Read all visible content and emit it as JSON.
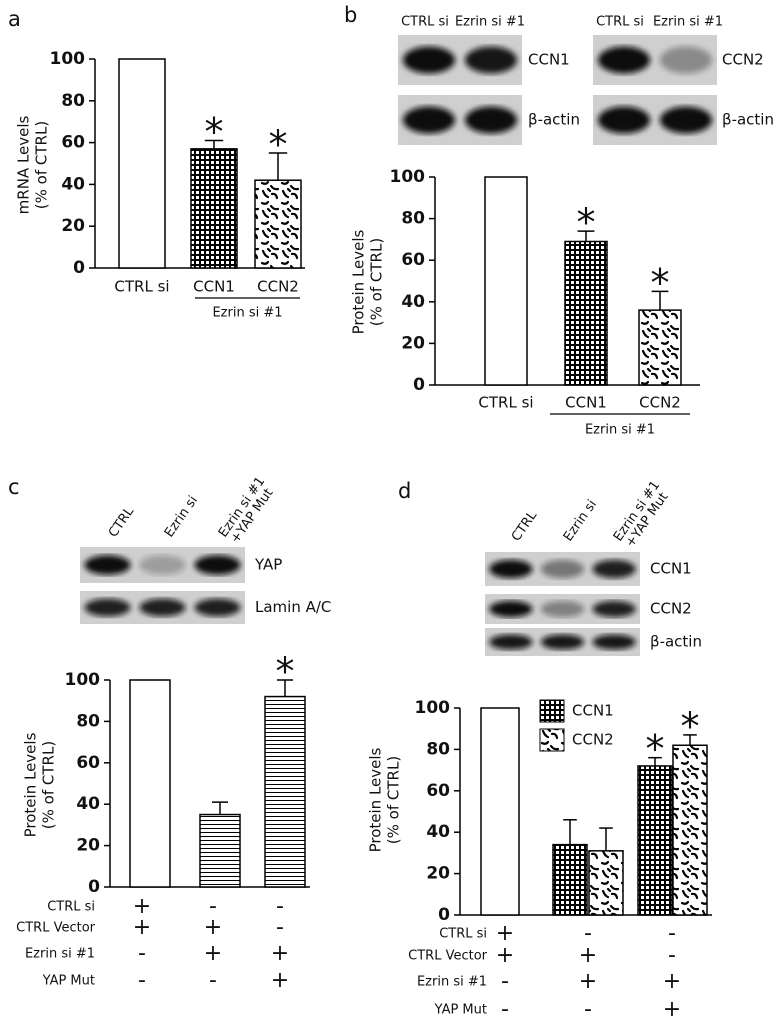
{
  "chart_data": [
    {
      "type": "bar",
      "panel": "a",
      "ylabel": [
        "mRNA Levels",
        "(% of CTRL)"
      ],
      "categories": [
        "CTRL si",
        "CCN1",
        "CCN2"
      ],
      "values": [
        100,
        57,
        42
      ],
      "errors": [
        null,
        4,
        13
      ],
      "significance": [
        null,
        "*",
        "*"
      ],
      "patterns": [
        "open",
        "checker",
        "speckle"
      ],
      "group": {
        "label": "Ezrin si #1",
        "from": 1,
        "to": 2
      },
      "ylim": [
        0,
        100
      ],
      "yticks": [
        0,
        20,
        40,
        60,
        80,
        100
      ]
    },
    {
      "type": "bar",
      "panel": "b",
      "ylabel": [
        "Protein Levels",
        "(% of CTRL)"
      ],
      "categories": [
        "CTRL si",
        "CCN1",
        "CCN2"
      ],
      "values": [
        100,
        69,
        36
      ],
      "errors": [
        null,
        5,
        9
      ],
      "significance": [
        null,
        "*",
        "*"
      ],
      "patterns": [
        "open",
        "checker",
        "speckle"
      ],
      "group": {
        "label": "Ezrin si #1",
        "from": 1,
        "to": 2
      },
      "ylim": [
        0,
        100
      ],
      "yticks": [
        0,
        20,
        40,
        60,
        80,
        100
      ],
      "blots": [
        {
          "lanes": [
            "CTRL si",
            "Ezrin si #1"
          ],
          "rows": [
            "CCN1",
            "β-actin"
          ]
        },
        {
          "lanes": [
            "CTRL si",
            "Ezrin si #1"
          ],
          "rows": [
            "CCN2",
            "β-actin"
          ]
        }
      ]
    },
    {
      "type": "bar",
      "panel": "c",
      "ylabel": [
        "Protein Levels",
        "(% of CTRL)"
      ],
      "values": [
        100,
        35,
        92
      ],
      "errors": [
        null,
        6,
        8
      ],
      "significance": [
        null,
        null,
        "*"
      ],
      "patterns": [
        "open",
        "hlines",
        "hlines"
      ],
      "ylim": [
        0,
        100
      ],
      "yticks": [
        0,
        20,
        40,
        60,
        80,
        100
      ],
      "conditions": [
        {
          "label": "CTRL si",
          "marks": [
            "+",
            "-",
            "-"
          ]
        },
        {
          "label": "CTRL Vector",
          "marks": [
            "+",
            "+",
            "-"
          ]
        },
        {
          "label": "Ezrin si #1",
          "marks": [
            "-",
            "+",
            "+"
          ]
        },
        {
          "label": "YAP Mut",
          "marks": [
            "-",
            "-",
            "+"
          ]
        }
      ],
      "blots": [
        {
          "lanes": [
            [
              "CTRL"
            ],
            [
              "Ezrin si"
            ],
            [
              "Ezrin si #1",
              "+YAP Mut"
            ]
          ],
          "rows": [
            "YAP",
            "Lamin A/C"
          ]
        }
      ]
    },
    {
      "type": "grouped_bar",
      "panel": "d",
      "ylabel": [
        "Protein Levels",
        "(% of CTRL)"
      ],
      "control_value": 100,
      "series": [
        {
          "name": "CCN1",
          "pattern": "checker",
          "values": [
            null,
            34,
            72
          ],
          "errors": [
            null,
            12,
            4
          ],
          "significance": [
            null,
            null,
            "*"
          ]
        },
        {
          "name": "CCN2",
          "pattern": "speckle",
          "values": [
            null,
            31,
            82
          ],
          "errors": [
            null,
            11,
            5
          ],
          "significance": [
            null,
            null,
            "*"
          ]
        }
      ],
      "ylim": [
        0,
        100
      ],
      "yticks": [
        0,
        20,
        40,
        60,
        80,
        100
      ],
      "conditions": [
        {
          "label": "CTRL si",
          "marks": [
            "+",
            "-",
            "-"
          ]
        },
        {
          "label": "CTRL Vector",
          "marks": [
            "+",
            "+",
            "-"
          ]
        },
        {
          "label": "Ezrin si #1",
          "marks": [
            "-",
            "+",
            "+"
          ]
        },
        {
          "label": "YAP Mut",
          "marks": [
            "-",
            "-",
            "+"
          ]
        }
      ],
      "blots": [
        {
          "lanes": [
            [
              "CTRL"
            ],
            [
              "Ezrin si"
            ],
            [
              "Ezrin si #1",
              "+YAP Mut"
            ]
          ],
          "rows": [
            "CCN1",
            "CCN2",
            "β-actin"
          ]
        }
      ]
    }
  ]
}
